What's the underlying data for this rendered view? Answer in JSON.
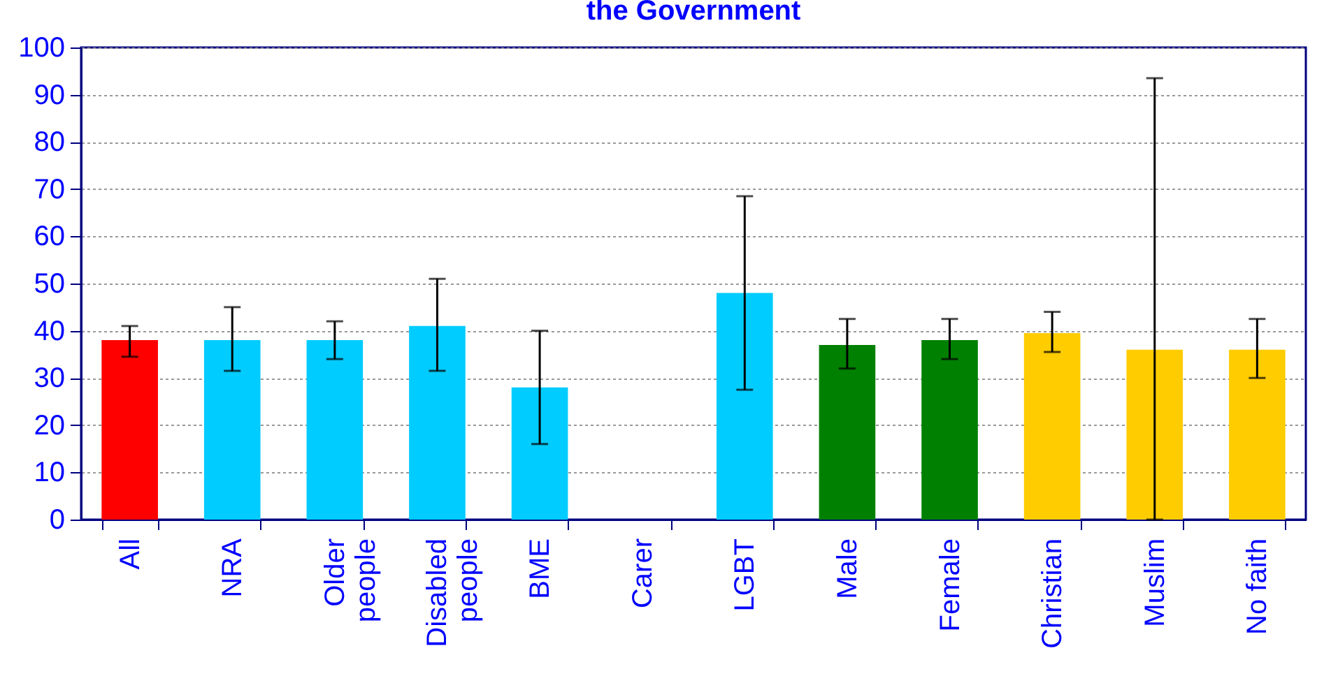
{
  "chart_data": {
    "type": "bar",
    "title": "the Government",
    "categories": [
      "All",
      "NRA",
      "Older people",
      "Disabled people",
      "BME",
      "Carer",
      "LGBT",
      "Male",
      "Female",
      "Christian",
      "Muslim",
      "No faith"
    ],
    "values": [
      38,
      38,
      38,
      41,
      28,
      0,
      48,
      37,
      38,
      39.5,
      36,
      36
    ],
    "errors": [
      [
        34.5,
        41
      ],
      [
        31.5,
        45
      ],
      [
        34,
        42
      ],
      [
        31.5,
        51
      ],
      [
        16,
        40
      ],
      null,
      [
        27.5,
        68.5
      ],
      [
        32,
        42.5
      ],
      [
        34,
        42.5
      ],
      [
        35.5,
        44
      ],
      [
        0,
        93.5
      ],
      [
        30,
        42.5
      ]
    ],
    "colors": [
      "#ff0000",
      "#00ccff",
      "#00ccff",
      "#00ccff",
      "#00ccff",
      "#00ccff",
      "#00ccff",
      "#008000",
      "#008000",
      "#ffcc00",
      "#ffcc00",
      "#ffcc00"
    ],
    "ylim": [
      0,
      100
    ],
    "yticks": [
      0,
      10,
      20,
      30,
      40,
      50,
      60,
      70,
      80,
      90,
      100
    ],
    "grid": "y"
  }
}
